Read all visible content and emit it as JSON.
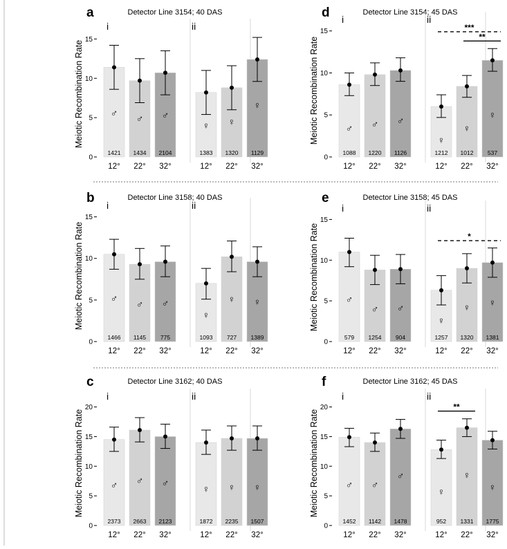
{
  "chart_data": [
    {
      "id": "a",
      "type": "bar",
      "letter": "a",
      "title": "Detector Line 3154; 40 DAS",
      "ylabel": "Meiotic Recombination Rate",
      "ylim": [
        0,
        16
      ],
      "yticks": [
        "0",
        "5",
        "10",
        "15"
      ],
      "ytick_values": [
        0,
        5,
        10,
        15
      ],
      "groups": [
        {
          "label": "i",
          "sex": "♂",
          "bars": [
            {
              "x": "12°",
              "value": 11.4,
              "err_low": 8.6,
              "err_high": 14.2,
              "count": "1421",
              "sym_y": 5.6,
              "shade": "#e8e8e8"
            },
            {
              "x": "22°",
              "value": 9.7,
              "err_low": 6.9,
              "err_high": 12.5,
              "count": "1434",
              "sym_y": 4.9,
              "shade": "#d2d2d2"
            },
            {
              "x": "32°",
              "value": 10.7,
              "err_low": 7.9,
              "err_high": 13.5,
              "count": "2104",
              "sym_y": 5.3,
              "shade": "#a6a6a6"
            }
          ]
        },
        {
          "label": "ii",
          "sex": "♀",
          "bars": [
            {
              "x": "12°",
              "value": 8.2,
              "err_low": 5.4,
              "err_high": 11.0,
              "count": "1383",
              "sym_y": 4.0,
              "shade": "#e8e8e8"
            },
            {
              "x": "22°",
              "value": 8.8,
              "err_low": 6.0,
              "err_high": 11.6,
              "count": "1320",
              "sym_y": 4.5,
              "shade": "#d2d2d2"
            },
            {
              "x": "32°",
              "value": 12.4,
              "err_low": 9.6,
              "err_high": 15.2,
              "count": "1129",
              "sym_y": 6.6,
              "shade": "#a6a6a6"
            }
          ]
        }
      ],
      "significance": []
    },
    {
      "id": "d",
      "type": "bar",
      "letter": "d",
      "title": "Detector Line 3154; 45 DAS",
      "ylabel": "Meiotic Recombination Rate",
      "ylim": [
        0,
        15.8
      ],
      "yticks": [
        "0",
        "5",
        "10",
        "15"
      ],
      "ytick_values": [
        0,
        5,
        10,
        15
      ],
      "groups": [
        {
          "label": "i",
          "sex": "♂",
          "bars": [
            {
              "x": "12°",
              "value": 8.6,
              "err_low": 7.3,
              "err_high": 10.0,
              "count": "1088",
              "sym_y": 3.4,
              "shade": "#e8e8e8"
            },
            {
              "x": "22°",
              "value": 9.8,
              "err_low": 8.5,
              "err_high": 11.2,
              "count": "1220",
              "sym_y": 3.9,
              "shade": "#d2d2d2"
            },
            {
              "x": "32°",
              "value": 10.3,
              "err_low": 9.0,
              "err_high": 11.8,
              "count": "1126",
              "sym_y": 4.3,
              "shade": "#a6a6a6"
            }
          ]
        },
        {
          "label": "ii",
          "sex": "♀",
          "bars": [
            {
              "x": "12°",
              "value": 6.0,
              "err_low": 4.7,
              "err_high": 7.4,
              "count": "1212",
              "sym_y": 2.0,
              "shade": "#e8e8e8"
            },
            {
              "x": "22°",
              "value": 8.4,
              "err_low": 7.1,
              "err_high": 9.7,
              "count": "1012",
              "sym_y": 3.4,
              "shade": "#d2d2d2"
            },
            {
              "x": "32°",
              "value": 11.5,
              "err_low": 10.2,
              "err_high": 12.9,
              "count": "537",
              "sym_y": 5.0,
              "shade": "#a6a6a6"
            }
          ]
        }
      ],
      "significance": [
        {
          "label": "***",
          "group": 1,
          "from": 0,
          "to": 2,
          "y": 14.9,
          "style": "dashed"
        },
        {
          "label": "**",
          "group": 1,
          "from": 1,
          "to": 2,
          "y": 13.8,
          "style": "solid"
        }
      ]
    },
    {
      "id": "b",
      "type": "bar",
      "letter": "b",
      "title": "Detector Line 3158; 40 DAS",
      "ylabel": "Meiotic Recombination Rate",
      "ylim": [
        0,
        15.8
      ],
      "yticks": [
        "0",
        "5",
        "10",
        "15"
      ],
      "ytick_values": [
        0,
        5,
        10,
        15
      ],
      "groups": [
        {
          "label": "i",
          "sex": "♂",
          "bars": [
            {
              "x": "12°",
              "value": 10.5,
              "err_low": 8.7,
              "err_high": 12.3,
              "count": "1466",
              "sym_y": 5.2,
              "shade": "#e8e8e8"
            },
            {
              "x": "22°",
              "value": 9.3,
              "err_low": 7.5,
              "err_high": 11.2,
              "count": "1145",
              "sym_y": 4.5,
              "shade": "#d2d2d2"
            },
            {
              "x": "32°",
              "value": 9.6,
              "err_low": 7.8,
              "err_high": 11.5,
              "count": "775",
              "sym_y": 4.6,
              "shade": "#a6a6a6"
            }
          ]
        },
        {
          "label": "ii",
          "sex": "♀",
          "bars": [
            {
              "x": "12°",
              "value": 7.0,
              "err_low": 5.1,
              "err_high": 8.8,
              "count": "1093",
              "sym_y": 3.2,
              "shade": "#e8e8e8"
            },
            {
              "x": "22°",
              "value": 10.2,
              "err_low": 8.4,
              "err_high": 12.1,
              "count": "727",
              "sym_y": 5.1,
              "shade": "#d2d2d2"
            },
            {
              "x": "32°",
              "value": 9.6,
              "err_low": 7.8,
              "err_high": 11.4,
              "count": "1389",
              "sym_y": 4.8,
              "shade": "#a6a6a6"
            }
          ]
        }
      ],
      "significance": []
    },
    {
      "id": "e",
      "type": "bar",
      "letter": "e",
      "title": "Detector Line 3158; 45 DAS",
      "ylabel": "Meiotic Recombination Rate",
      "ylim": [
        0,
        15.8
      ],
      "yticks": [
        "0",
        "5",
        "10",
        "15"
      ],
      "ytick_values": [
        0,
        5,
        10,
        15
      ],
      "groups": [
        {
          "label": "i",
          "sex": "♂",
          "bars": [
            {
              "x": "12°",
              "value": 11.0,
              "err_low": 9.2,
              "err_high": 12.7,
              "count": "579",
              "sym_y": 5.2,
              "shade": "#e8e8e8"
            },
            {
              "x": "22°",
              "value": 8.8,
              "err_low": 7.0,
              "err_high": 10.6,
              "count": "1254",
              "sym_y": 4.0,
              "shade": "#d2d2d2"
            },
            {
              "x": "32°",
              "value": 8.9,
              "err_low": 7.1,
              "err_high": 10.7,
              "count": "904",
              "sym_y": 4.1,
              "shade": "#a6a6a6"
            }
          ]
        },
        {
          "label": "ii",
          "sex": "♀",
          "bars": [
            {
              "x": "12°",
              "value": 6.3,
              "err_low": 4.5,
              "err_high": 8.1,
              "count": "1257",
              "sym_y": 2.6,
              "shade": "#e8e8e8"
            },
            {
              "x": "22°",
              "value": 9.0,
              "err_low": 7.2,
              "err_high": 10.8,
              "count": "1320",
              "sym_y": 4.2,
              "shade": "#d2d2d2"
            },
            {
              "x": "32°",
              "value": 9.7,
              "err_low": 7.9,
              "err_high": 11.5,
              "count": "1381",
              "sym_y": 4.8,
              "shade": "#a6a6a6"
            }
          ]
        }
      ],
      "significance": [
        {
          "label": "*",
          "group": 1,
          "from": 0,
          "to": 2,
          "y": 12.4,
          "style": "dashed"
        }
      ]
    },
    {
      "id": "c",
      "type": "bar",
      "letter": "c",
      "title": "Detector Line 3162; 40 DAS",
      "ylabel": "Meiotic Recombination Rate",
      "ylim": [
        0,
        21
      ],
      "yticks": [
        "0",
        "5",
        "10",
        "15",
        "20"
      ],
      "ytick_values": [
        0,
        5,
        10,
        15,
        20
      ],
      "groups": [
        {
          "label": "i",
          "sex": "♂",
          "bars": [
            {
              "x": "12°",
              "value": 14.5,
              "err_low": 12.5,
              "err_high": 16.6,
              "count": "2373",
              "sym_y": 6.8,
              "shade": "#e8e8e8"
            },
            {
              "x": "22°",
              "value": 16.1,
              "err_low": 14.1,
              "err_high": 18.2,
              "count": "2663",
              "sym_y": 7.6,
              "shade": "#d2d2d2"
            },
            {
              "x": "32°",
              "value": 15.0,
              "err_low": 13.0,
              "err_high": 17.1,
              "count": "2123",
              "sym_y": 7.2,
              "shade": "#a6a6a6"
            }
          ]
        },
        {
          "label": "ii",
          "sex": "♀",
          "bars": [
            {
              "x": "12°",
              "value": 14.0,
              "err_low": 12.0,
              "err_high": 16.1,
              "count": "1872",
              "sym_y": 6.2,
              "shade": "#e8e8e8"
            },
            {
              "x": "22°",
              "value": 14.7,
              "err_low": 12.7,
              "err_high": 16.8,
              "count": "2235",
              "sym_y": 6.5,
              "shade": "#d2d2d2"
            },
            {
              "x": "32°",
              "value": 14.7,
              "err_low": 12.7,
              "err_high": 16.8,
              "count": "1507",
              "sym_y": 6.5,
              "shade": "#a6a6a6"
            }
          ]
        }
      ],
      "significance": []
    },
    {
      "id": "f",
      "type": "bar",
      "letter": "f",
      "title": "Detector Line 3162; 45 DAS",
      "ylabel": "Meiotic Recombination Rate",
      "ylim": [
        0,
        21
      ],
      "yticks": [
        "0",
        "5",
        "10",
        "15",
        "20"
      ],
      "ytick_values": [
        0,
        5,
        10,
        15,
        20
      ],
      "groups": [
        {
          "label": "i",
          "sex": "♂",
          "bars": [
            {
              "x": "12°",
              "value": 14.9,
              "err_low": 13.3,
              "err_high": 16.4,
              "count": "1452",
              "sym_y": 6.9,
              "shade": "#e8e8e8"
            },
            {
              "x": "22°",
              "value": 14.0,
              "err_low": 12.5,
              "err_high": 15.6,
              "count": "1142",
              "sym_y": 6.9,
              "shade": "#d2d2d2"
            },
            {
              "x": "32°",
              "value": 16.3,
              "err_low": 14.7,
              "err_high": 17.9,
              "count": "1478",
              "sym_y": 8.4,
              "shade": "#a6a6a6"
            }
          ]
        },
        {
          "label": "ii",
          "sex": "♀",
          "bars": [
            {
              "x": "12°",
              "value": 12.8,
              "err_low": 11.3,
              "err_high": 14.4,
              "count": "952",
              "sym_y": 5.7,
              "shade": "#e8e8e8"
            },
            {
              "x": "22°",
              "value": 16.5,
              "err_low": 15.0,
              "err_high": 18.0,
              "count": "1331",
              "sym_y": 8.5,
              "shade": "#d2d2d2"
            },
            {
              "x": "32°",
              "value": 14.4,
              "err_low": 12.9,
              "err_high": 15.9,
              "count": "1775",
              "sym_y": 6.5,
              "shade": "#a6a6a6"
            }
          ]
        }
      ],
      "significance": [
        {
          "label": "**",
          "group": 1,
          "from": 0,
          "to": 1,
          "y": 19.3,
          "style": "solid"
        }
      ]
    }
  ]
}
